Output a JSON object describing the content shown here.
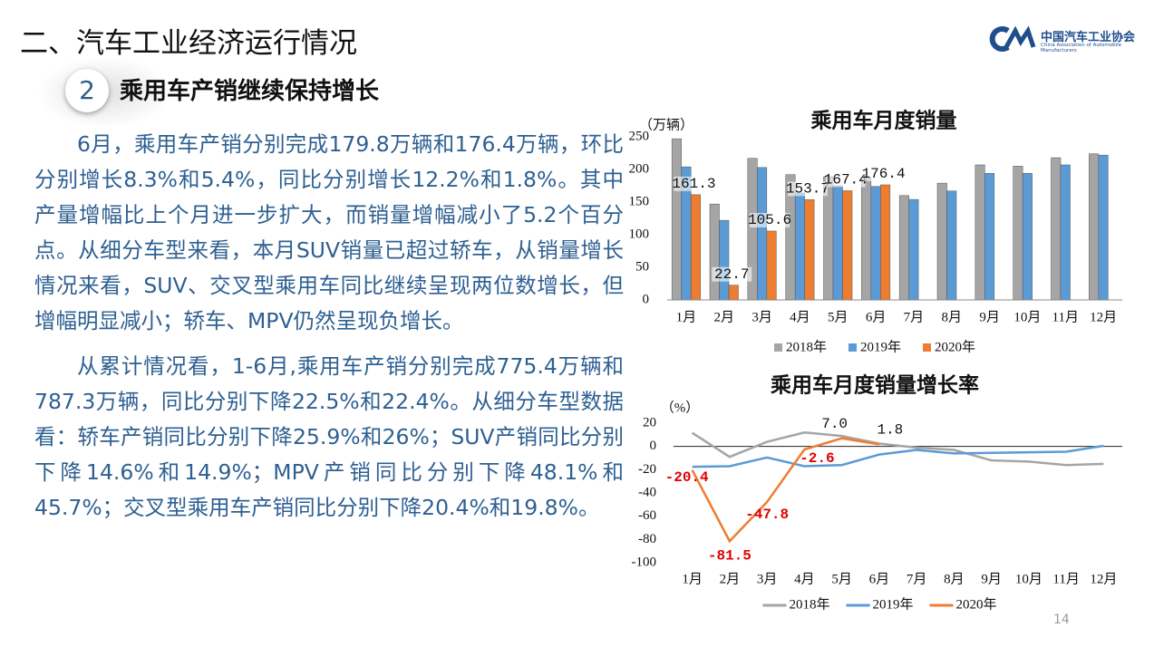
{
  "header": {
    "title": "二、汽车工业经济运行情况",
    "section_number": "2",
    "section_title": "乘用车产销继续保持增长",
    "org_name": "中国汽车工业协会",
    "org_name_en": "China Association of Automobile Manufacturers"
  },
  "body": {
    "paragraphs": [
      "6月，乘用车产销分别完成179.8万辆和176.4万辆，环比分别增长8.3%和5.4%，同比分别增长12.2%和1.8%。其中产量增幅比上个月进一步扩大，而销量增幅减小了5.2个百分点。从细分车型来看，本月SUV销量已超过轿车，从销量增长情况来看，SUV、交叉型乘用车同比继续呈现两位数增长，但增幅明显减小；轿车、MPV仍然呈现负增长。",
      "从累计情况看，1-6月,乘用车产销分别完成775.4万辆和787.3万辆，同比分别下降22.5%和22.4%。从细分车型数据看：轿车产销同比分别下降25.9%和26%；SUV产销同比分别下降14.6%和14.9%；MPV产销同比分别下降48.1%和45.7%；交叉型乘用车产销同比分别下降20.4%和19.8%。"
    ]
  },
  "page_number": "14",
  "chart_data": [
    {
      "type": "bar",
      "title": "乘用车月度销量",
      "y_label": "（万辆）",
      "categories": [
        "1月",
        "2月",
        "3月",
        "4月",
        "5月",
        "6月",
        "7月",
        "8月",
        "9月",
        "10月",
        "11月",
        "12月"
      ],
      "series": [
        {
          "name": "2018年",
          "color": "#a5a5a5",
          "values": [
            247,
            147,
            217,
            192,
            189,
            187,
            160,
            179,
            207,
            205,
            218,
            224
          ]
        },
        {
          "name": "2019年",
          "color": "#5b9bd5",
          "values": [
            204,
            122,
            203,
            164,
            175,
            174,
            154,
            167,
            194,
            194,
            207,
            222
          ]
        },
        {
          "name": "2020年",
          "color": "#ed7d31",
          "values": [
            161.3,
            22.7,
            105.6,
            153.7,
            167.4,
            176.4,
            null,
            null,
            null,
            null,
            null,
            null
          ],
          "data_labels": true
        }
      ],
      "ylim": [
        0,
        250
      ],
      "yticks": [
        0,
        50,
        100,
        150,
        200,
        250
      ]
    },
    {
      "type": "line",
      "title": "乘用车月度销量增长率",
      "y_label": "（%）",
      "categories": [
        "1月",
        "2月",
        "3月",
        "4月",
        "5月",
        "6月",
        "7月",
        "8月",
        "9月",
        "10月",
        "11月",
        "12月"
      ],
      "series": [
        {
          "name": "2018年",
          "color": "#a5a5a5",
          "values": [
            11.7,
            -9,
            4,
            12,
            9,
            2.5,
            -1,
            -3,
            -12,
            -13,
            -16,
            -15
          ]
        },
        {
          "name": "2019年",
          "color": "#5b9bd5",
          "values": [
            -17.5,
            -17,
            -9.5,
            -17,
            -16,
            -7,
            -3,
            -6,
            -5.5,
            -5,
            -4.5,
            0.5
          ]
        },
        {
          "name": "2020年",
          "color": "#ed7d31",
          "values": [
            -20.4,
            -81.5,
            -47.8,
            -2.6,
            7,
            1.8,
            null,
            null,
            null,
            null,
            null,
            null
          ],
          "value_labels": [
            "-20.4",
            "-81.5",
            "-47.8",
            "-2.6",
            "7.0",
            "1.8",
            null,
            null,
            null,
            null,
            null,
            null
          ]
        }
      ],
      "ylim": [
        -100,
        20
      ],
      "yticks": [
        -100,
        -80,
        -60,
        -40,
        -20,
        0,
        20
      ]
    }
  ]
}
